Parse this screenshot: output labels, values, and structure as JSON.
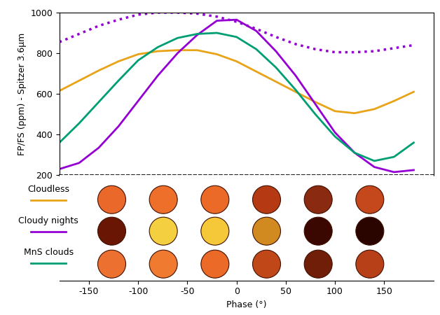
{
  "chart_data": {
    "type": "line",
    "x_label": "Phase (°)",
    "y_label": "FP/FS (ppm) - Spitzer 3.6μm",
    "x": [
      -180,
      -160,
      -140,
      -120,
      -100,
      -80,
      -60,
      -40,
      -20,
      0,
      20,
      40,
      60,
      80,
      100,
      120,
      140,
      160,
      180
    ],
    "series": [
      {
        "name": "Cloudless",
        "color": "#e8a317",
        "line_style": "solid",
        "values": [
          615,
          665,
          715,
          760,
          795,
          810,
          815,
          815,
          795,
          760,
          710,
          660,
          610,
          560,
          515,
          505,
          525,
          565,
          610
        ]
      },
      {
        "name": "Cloudy nights",
        "color": "#9400d3",
        "line_style": "solid",
        "values": [
          230,
          260,
          335,
          440,
          565,
          690,
          800,
          890,
          960,
          965,
          910,
          810,
          690,
          550,
          410,
          310,
          240,
          215,
          225
        ]
      },
      {
        "color": "#9400d3",
        "line_style": "dotted",
        "values": [
          855,
          895,
          935,
          965,
          990,
          1000,
          1000,
          995,
          980,
          955,
          920,
          880,
          845,
          820,
          805,
          805,
          810,
          825,
          840
        ]
      },
      {
        "name": "MnS clouds",
        "color": "#009e73",
        "line_style": "solid",
        "values": [
          360,
          455,
          560,
          665,
          765,
          830,
          875,
          895,
          900,
          880,
          820,
          730,
          620,
          500,
          390,
          310,
          270,
          290,
          360
        ]
      }
    ],
    "xlim": [
      -180,
      200
    ],
    "xticks": [
      -150,
      -100,
      -50,
      0,
      50,
      100,
      150
    ],
    "ylim": [
      200,
      1000
    ],
    "yticks": [
      200,
      400,
      600,
      800,
      1000
    ],
    "grid": false
  }
}
